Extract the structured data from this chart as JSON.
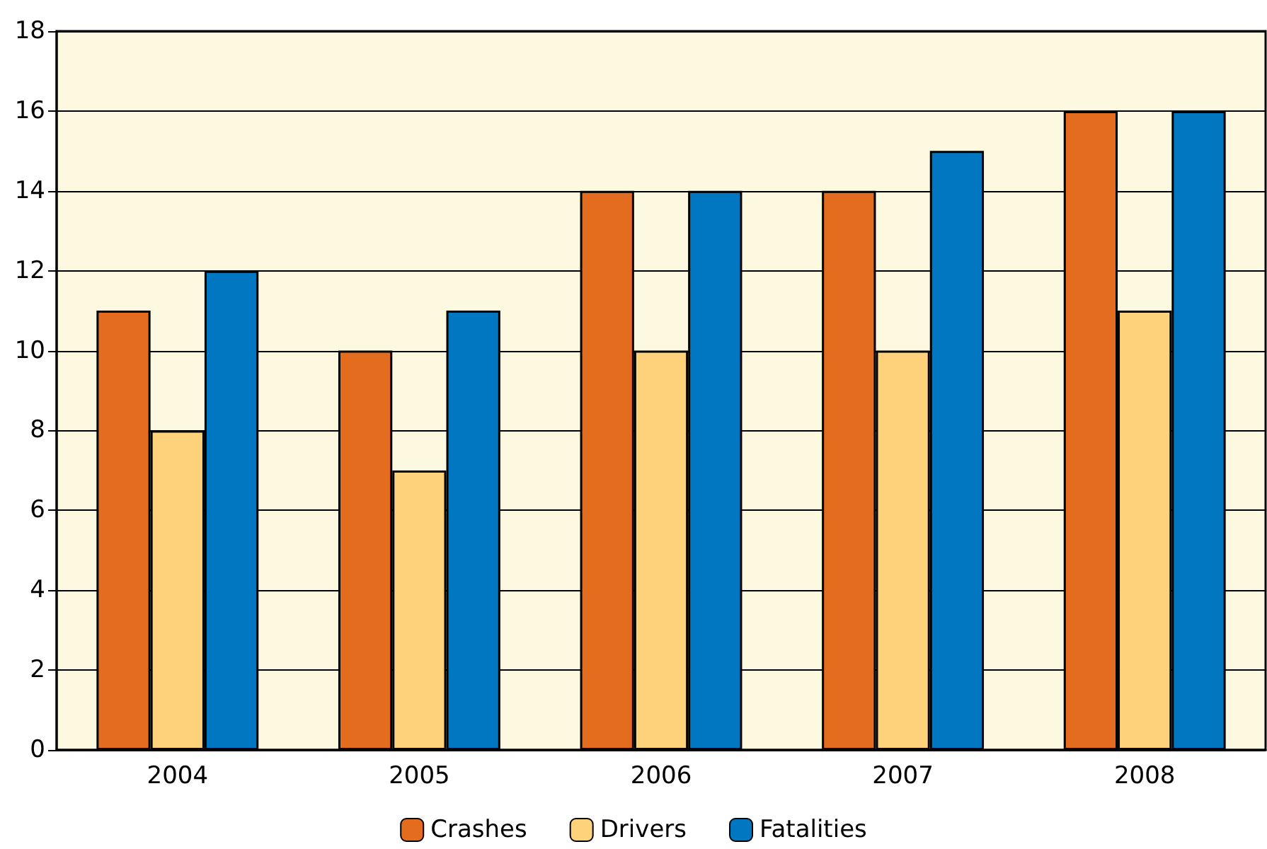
{
  "chart_data": {
    "type": "bar",
    "categories": [
      "2004",
      "2005",
      "2006",
      "2007",
      "2008"
    ],
    "series": [
      {
        "name": "Crashes",
        "color": "#e36c1e",
        "values": [
          11,
          10,
          14,
          14,
          16
        ]
      },
      {
        "name": "Drivers",
        "color": "#fdd27a",
        "values": [
          8,
          7,
          10,
          10,
          11
        ]
      },
      {
        "name": "Fatalities",
        "color": "#0077c0",
        "values": [
          12,
          11,
          14,
          15,
          16
        ]
      }
    ],
    "ylim": [
      0,
      18
    ],
    "yticks": [
      0,
      2,
      4,
      6,
      8,
      10,
      12,
      14,
      16,
      18
    ],
    "grid": "y",
    "legend": "bottom"
  }
}
